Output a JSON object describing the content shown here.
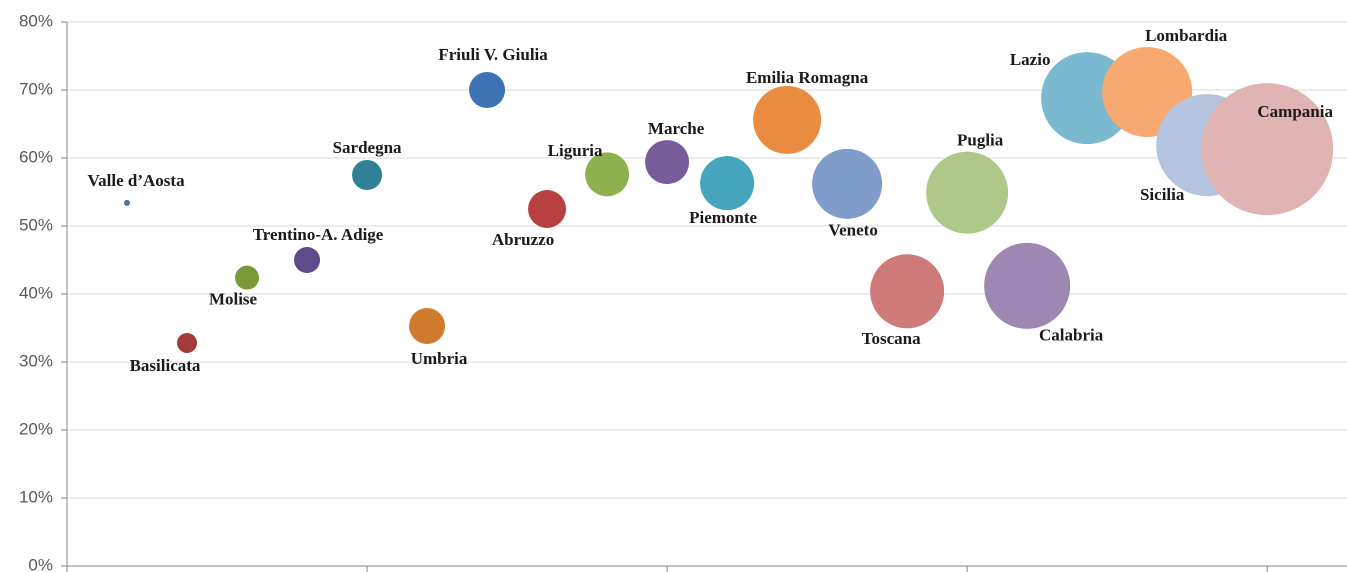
{
  "chart_data": {
    "type": "bubble",
    "categories": [
      "Valle d’Aosta",
      "Basilicata",
      "Molise",
      "Trentino-A. Adige",
      "Sardegna",
      "Umbria",
      "Friuli V. Giulia",
      "Abruzzo",
      "Liguria",
      "Marche",
      "Piemonte",
      "Emilia Romagna",
      "Veneto",
      "Toscana",
      "Puglia",
      "Calabria",
      "Lazio",
      "Lombardia",
      "Sicilia",
      "Campania"
    ],
    "x": [
      1,
      2,
      3,
      4,
      5,
      6,
      7,
      8,
      9,
      10,
      11,
      12,
      13,
      14,
      15,
      16,
      17,
      18,
      19,
      20
    ],
    "values": [
      53.4,
      32.8,
      42.4,
      45.0,
      57.5,
      35.3,
      70.0,
      52.5,
      57.6,
      59.4,
      56.3,
      65.6,
      56.2,
      40.4,
      54.9,
      41.2,
      68.8,
      69.7,
      61.9,
      61.3
    ],
    "sizes": [
      9,
      100,
      144,
      169,
      225,
      324,
      324,
      361,
      484,
      484,
      729,
      1156,
      1225,
      1369,
      1681,
      1849,
      2116,
      2025,
      2601,
      4356
    ],
    "colors": [
      "#4a6fa5",
      "#a33b3b",
      "#7a9a3a",
      "#5e4a8a",
      "#2f8296",
      "#d07a2e",
      "#3f72b5",
      "#b84040",
      "#8fb04e",
      "#775c9a",
      "#45a5bd",
      "#e98c3f",
      "#7f9ccb",
      "#cd7a78",
      "#adc888",
      "#9c88b3",
      "#7ab9cf",
      "#f8a972",
      "#b4c4df",
      "#e0b4b3"
    ],
    "xlim": [
      0,
      21.33
    ],
    "xticks": [
      0,
      5,
      10,
      15,
      20
    ],
    "ylim": [
      0,
      80
    ],
    "yticks": [
      {
        "value": 0,
        "label": "0%"
      },
      {
        "value": 10,
        "label": "10%"
      },
      {
        "value": 20,
        "label": "20%"
      },
      {
        "value": 30,
        "label": "30%"
      },
      {
        "value": 40,
        "label": "40%"
      },
      {
        "value": 50,
        "label": "50%"
      },
      {
        "value": 60,
        "label": "60%"
      },
      {
        "value": 70,
        "label": "70%"
      },
      {
        "value": 80,
        "label": "80%"
      }
    ],
    "grid": true
  }
}
